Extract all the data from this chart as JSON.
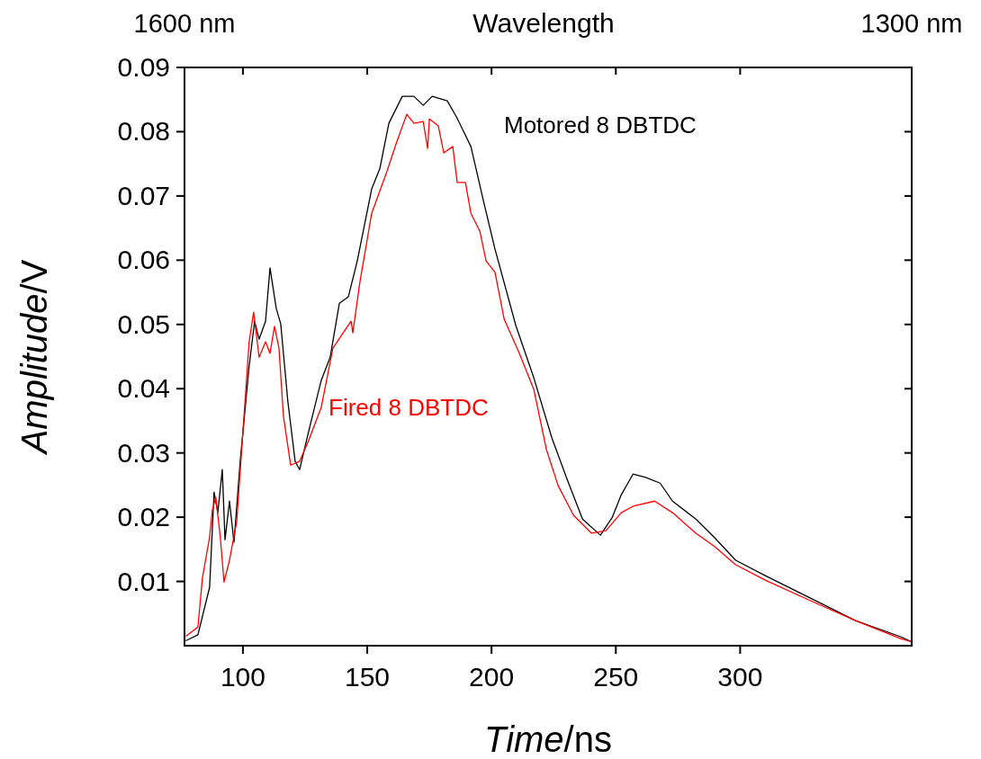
{
  "chart_data": {
    "type": "line",
    "xlabel": "Time/ns",
    "ylabel": "Amplitude/V",
    "x2label": "Wavelength",
    "xlim": [
      76.5,
      369
    ],
    "xticks": [
      100,
      150,
      200,
      250,
      300
    ],
    "ylim": [
      0,
      0.09
    ],
    "yticks": [
      0.01,
      0.02,
      0.03,
      0.04,
      0.05,
      0.06,
      0.07,
      0.08,
      0.09
    ],
    "x2lim": [
      1600,
      1300
    ],
    "x2ticks": [
      {
        "value": 1600,
        "label": "1600 nm"
      },
      {
        "value": 1300,
        "label": "1300 nm"
      }
    ],
    "grid": false,
    "marker": "none",
    "line_style": "solid",
    "series": [
      {
        "name": "Motored 8 DBTDC",
        "color": "#000000",
        "x": [
          77.2,
          81.9,
          86.6,
          88.4,
          89.9,
          91.7,
          92.8,
          94.6,
          96.4,
          98.9,
          102.5,
          104.7,
          106.5,
          109.1,
          110.9,
          113.4,
          115.2,
          118.1,
          121.0,
          122.8,
          126.4,
          131.5,
          135.1,
          138.8,
          142.4,
          146.0,
          151.8,
          155.1,
          158.7,
          164.1,
          168.8,
          172.5,
          176.1,
          182.2,
          185.9,
          191.7,
          196.7,
          201.4,
          209.8,
          217.0,
          224.3,
          230.4,
          236.6,
          243.8,
          248.6,
          252.2,
          256.9,
          262.0,
          267.8,
          272.8,
          282.2,
          289.5,
          298.2,
          310.1,
          328.3,
          346.4,
          364.5,
          369.0
        ],
        "values": [
          0.0008,
          0.0017,
          0.0091,
          0.0239,
          0.0207,
          0.0274,
          0.0165,
          0.0225,
          0.0161,
          0.0287,
          0.0435,
          0.0505,
          0.0477,
          0.0505,
          0.0588,
          0.0525,
          0.0501,
          0.0379,
          0.0287,
          0.0274,
          0.0333,
          0.0413,
          0.0449,
          0.0533,
          0.0543,
          0.0599,
          0.0711,
          0.0743,
          0.0813,
          0.0855,
          0.0855,
          0.0841,
          0.0855,
          0.0848,
          0.0823,
          0.0777,
          0.0693,
          0.0617,
          0.0498,
          0.0417,
          0.0323,
          0.0259,
          0.0197,
          0.0172,
          0.02,
          0.0235,
          0.0267,
          0.0262,
          0.0253,
          0.0225,
          0.0197,
          0.0169,
          0.0133,
          0.0109,
          0.0074,
          0.0039,
          0.0014,
          0.0006
        ]
      },
      {
        "name": "Fired 8 DBTDC",
        "color": "#ff0000",
        "x": [
          77.2,
          81.9,
          83.7,
          86.6,
          87.7,
          89.1,
          90.9,
          92.4,
          94.6,
          97.5,
          100.0,
          102.5,
          104.3,
          106.5,
          109.1,
          110.9,
          112.7,
          114.5,
          116.3,
          119.2,
          122.8,
          126.4,
          131.5,
          136.2,
          143.5,
          144.2,
          147.1,
          151.8,
          158.0,
          161.6,
          165.9,
          168.8,
          172.5,
          174.3,
          175.0,
          178.6,
          180.8,
          184.4,
          186.2,
          189.5,
          191.7,
          195.3,
          197.8,
          201.4,
          205.1,
          211.2,
          217.0,
          222.1,
          226.8,
          233.0,
          240.2,
          246.0,
          252.2,
          256.9,
          265.6,
          272.8,
          282.2,
          289.5,
          298.2,
          310.1,
          328.3,
          346.4,
          364.5,
          369.0
        ],
        "values": [
          0.0015,
          0.0029,
          0.0105,
          0.0169,
          0.0211,
          0.0231,
          0.0169,
          0.0099,
          0.0133,
          0.0193,
          0.0333,
          0.0473,
          0.0519,
          0.0449,
          0.0473,
          0.0455,
          0.0497,
          0.0463,
          0.0357,
          0.0281,
          0.0287,
          0.0319,
          0.0371,
          0.0463,
          0.0505,
          0.0487,
          0.0567,
          0.0673,
          0.0739,
          0.0781,
          0.0827,
          0.0813,
          0.0816,
          0.0774,
          0.082,
          0.0809,
          0.0767,
          0.0777,
          0.0721,
          0.0721,
          0.0673,
          0.0645,
          0.0599,
          0.0581,
          0.0508,
          0.0455,
          0.0399,
          0.0305,
          0.0249,
          0.0203,
          0.0175,
          0.0179,
          0.0207,
          0.0217,
          0.0225,
          0.0207,
          0.0175,
          0.0155,
          0.0126,
          0.0102,
          0.007,
          0.0039,
          0.0011,
          0.0006
        ]
      }
    ]
  }
}
